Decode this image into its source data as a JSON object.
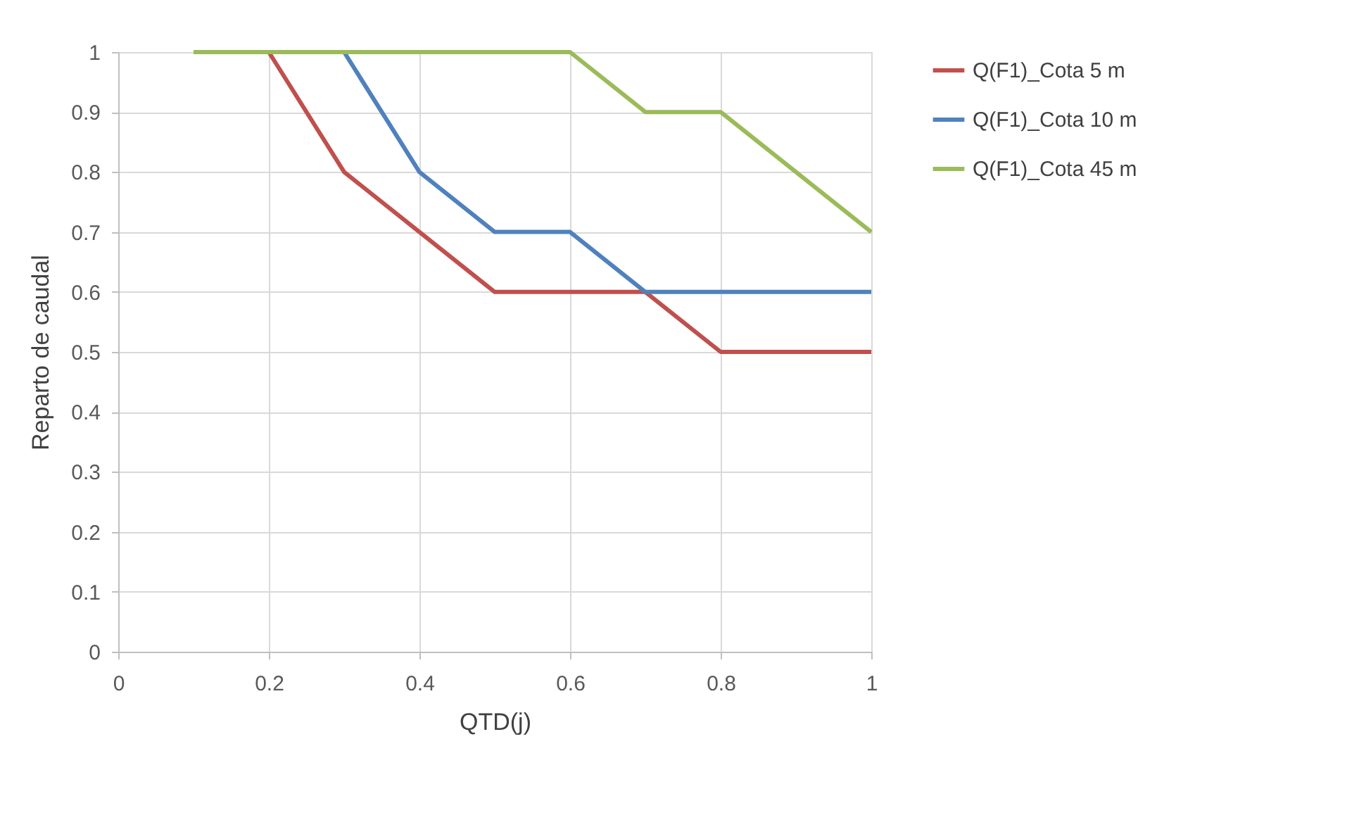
{
  "chart_data": {
    "type": "line",
    "xlabel": "QTD(j)",
    "ylabel": "Reparto de caudal",
    "x": [
      0.1,
      0.2,
      0.3,
      0.4,
      0.5,
      0.6,
      0.7,
      0.8,
      0.9,
      1
    ],
    "series": [
      {
        "name": "Q(F1)_Cota 5 m",
        "color": "#c0504d",
        "values": [
          null,
          1,
          0.8,
          0.7,
          0.6,
          0.6,
          0.6,
          0.5,
          0.5,
          0.5
        ]
      },
      {
        "name": "Q(F1)_Cota 10 m",
        "color": "#4f81bd",
        "values": [
          null,
          null,
          1,
          0.8,
          0.7,
          0.7,
          0.6,
          0.6,
          0.6,
          0.6
        ]
      },
      {
        "name": "Q(F1)_Cota 45 m",
        "color": "#9bbb59",
        "values": [
          1,
          1,
          1,
          1,
          1,
          1,
          0.9,
          0.9,
          0.8,
          0.7
        ]
      }
    ],
    "xlim": [
      0,
      1
    ],
    "xticks": [
      0,
      0.2,
      0.4,
      0.6,
      0.8,
      1
    ],
    "ylim": [
      0,
      1
    ],
    "yticks": [
      0,
      0.1,
      0.2,
      0.3,
      0.4,
      0.5,
      0.6,
      0.7,
      0.8,
      0.9,
      1
    ],
    "grid": true,
    "legend": "right",
    "marker": "none",
    "line_style": "solid"
  }
}
